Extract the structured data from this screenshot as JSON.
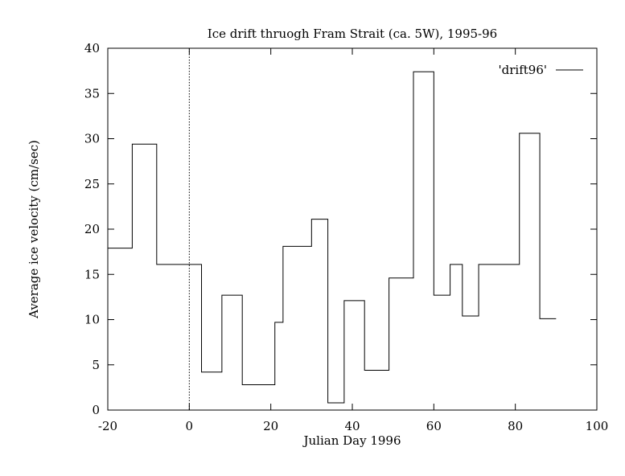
{
  "chart_data": {
    "type": "line",
    "title": "Ice drift thruogh Fram Strait (ca. 5W), 1995-96",
    "xlabel": "Julian Day 1996",
    "ylabel": "Average ice velocity (cm/sec)",
    "xlim": [
      -20,
      100
    ],
    "ylim": [
      0,
      40
    ],
    "xticks": [
      -20,
      0,
      20,
      40,
      60,
      80,
      100
    ],
    "yticks": [
      0,
      5,
      10,
      15,
      20,
      25,
      30,
      35,
      40
    ],
    "grid": false,
    "legend_position": "top-right",
    "reference_line": {
      "x": 0,
      "style": "dotted"
    },
    "series": [
      {
        "name": "'drift96'",
        "step": "post",
        "x": [
          -20,
          -14,
          -8,
          3,
          8,
          13,
          21,
          23,
          30,
          34,
          38,
          43,
          49,
          55,
          60,
          64,
          67,
          71,
          81,
          86,
          90
        ],
        "y": [
          17.9,
          29.4,
          16.1,
          4.2,
          12.7,
          2.8,
          9.7,
          18.1,
          21.1,
          0.8,
          12.1,
          4.4,
          14.6,
          37.4,
          12.7,
          16.1,
          10.4,
          16.1,
          30.6,
          10.1,
          10.1
        ]
      }
    ]
  }
}
